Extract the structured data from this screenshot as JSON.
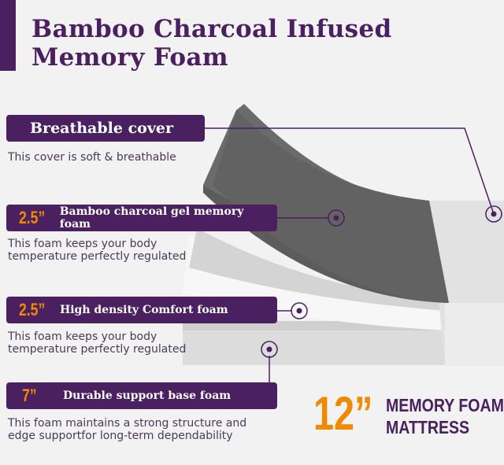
{
  "title": {
    "line1": "Bamboo Charcoal Infused",
    "line2": "Memory Foam"
  },
  "layers": [
    {
      "thickness": "",
      "label": "Breathable cover",
      "description": [
        "This cover is soft & breathable"
      ]
    },
    {
      "thickness": "2.5”",
      "label": "Bamboo charcoal gel  memory foam",
      "description": [
        "This foam keeps your body",
        "temperature perfectly regulated"
      ]
    },
    {
      "thickness": "2.5”",
      "label": "High density Comfort foam",
      "description": [
        "This foam keeps your body",
        "temperature perfectly regulated"
      ]
    },
    {
      "thickness": "7”",
      "label": "Durable support base foam",
      "description": [
        "This foam maintains a strong structure and",
        "edge supportfor long-term dependability"
      ]
    }
  ],
  "badge": {
    "size": "12”",
    "line1": "MEMORY FOAM",
    "line2": "MATTRESS"
  },
  "colors": {
    "accent": "#4a2060",
    "highlight": "#f08a00"
  }
}
